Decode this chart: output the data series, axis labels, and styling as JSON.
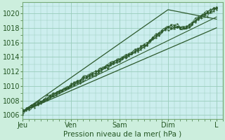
{
  "xlabel": "Pression niveau de la mer( hPa )",
  "bg_color": "#cceedd",
  "plot_bg_color": "#cceeee",
  "grid_color": "#99ccbb",
  "line_color": "#2d5a2d",
  "ylim": [
    1005.5,
    1021.5
  ],
  "yticks": [
    1006,
    1008,
    1010,
    1012,
    1014,
    1016,
    1018,
    1020
  ],
  "day_labels": [
    "Jeu",
    "Ven",
    "Sam",
    "Dim",
    "L"
  ],
  "day_positions": [
    0,
    24,
    48,
    72,
    96
  ],
  "xlim": [
    0,
    99
  ],
  "figsize": [
    3.2,
    2.0
  ],
  "dpi": 100
}
